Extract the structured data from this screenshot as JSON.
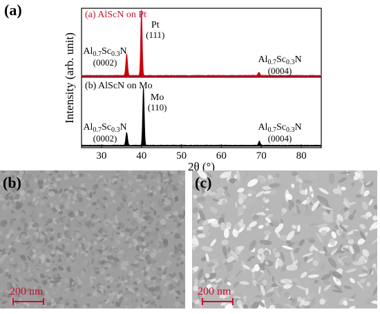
{
  "figure": {
    "panel_labels": {
      "a": "(a)",
      "b": "(b)",
      "c": "(c)"
    }
  },
  "chart_data": {
    "type": "line",
    "xlabel": "2θ (°)",
    "ylabel": "Intensity (arb. unit)",
    "xlim": [
      25,
      85
    ],
    "x_ticks": [
      30,
      40,
      50,
      60,
      70,
      80
    ],
    "grid": false,
    "series": [
      {
        "name": "(a) AlScN on Pt",
        "color": "#c8102e",
        "fill_color": "#cc0000",
        "peaks": [
          {
            "x": 36.3,
            "height": 0.33,
            "label_main": "",
            "label_idx": ""
          },
          {
            "x": 40.0,
            "height": 1.0,
            "label_main": "Pt",
            "label_idx": "(111)"
          },
          {
            "x": 69.4,
            "height": 0.05,
            "label_main": "",
            "label_idx": ""
          }
        ],
        "annotations": [
          {
            "base": "Al",
            "sub1": "0.7",
            "mid": "Sc",
            "sub2": "0.3",
            "end": "N",
            "idx": "(0002)",
            "near_x": 36.3
          },
          {
            "base": "Al",
            "sub1": "0.7",
            "mid": "Sc",
            "sub2": "0.3",
            "end": "N",
            "idx": "(0004)",
            "near_x": 69.4
          }
        ]
      },
      {
        "name": "(b) AlScN on Mo",
        "color": "#000000",
        "fill_color": "#000000",
        "peaks": [
          {
            "x": 36.3,
            "height": 0.22,
            "label_main": "",
            "label_idx": ""
          },
          {
            "x": 40.5,
            "height": 1.0,
            "label_main": "Mo",
            "label_idx": "(110)"
          },
          {
            "x": 69.5,
            "height": 0.07,
            "label_main": "",
            "label_idx": ""
          }
        ],
        "annotations": [
          {
            "base": "Al",
            "sub1": "0.7",
            "mid": "Sc",
            "sub2": "0.3",
            "end": "N",
            "idx": "(0002)",
            "near_x": 36.3
          },
          {
            "base": "Al",
            "sub1": "0.7",
            "mid": "Sc",
            "sub2": "0.3",
            "end": "N",
            "idx": "(0004)",
            "near_x": 69.5
          }
        ]
      }
    ]
  },
  "sem_images": {
    "b": {
      "scale_label": "200 nm",
      "texture": "fine-grain"
    },
    "c": {
      "scale_label": "200 nm",
      "texture": "coarse-grain"
    }
  }
}
